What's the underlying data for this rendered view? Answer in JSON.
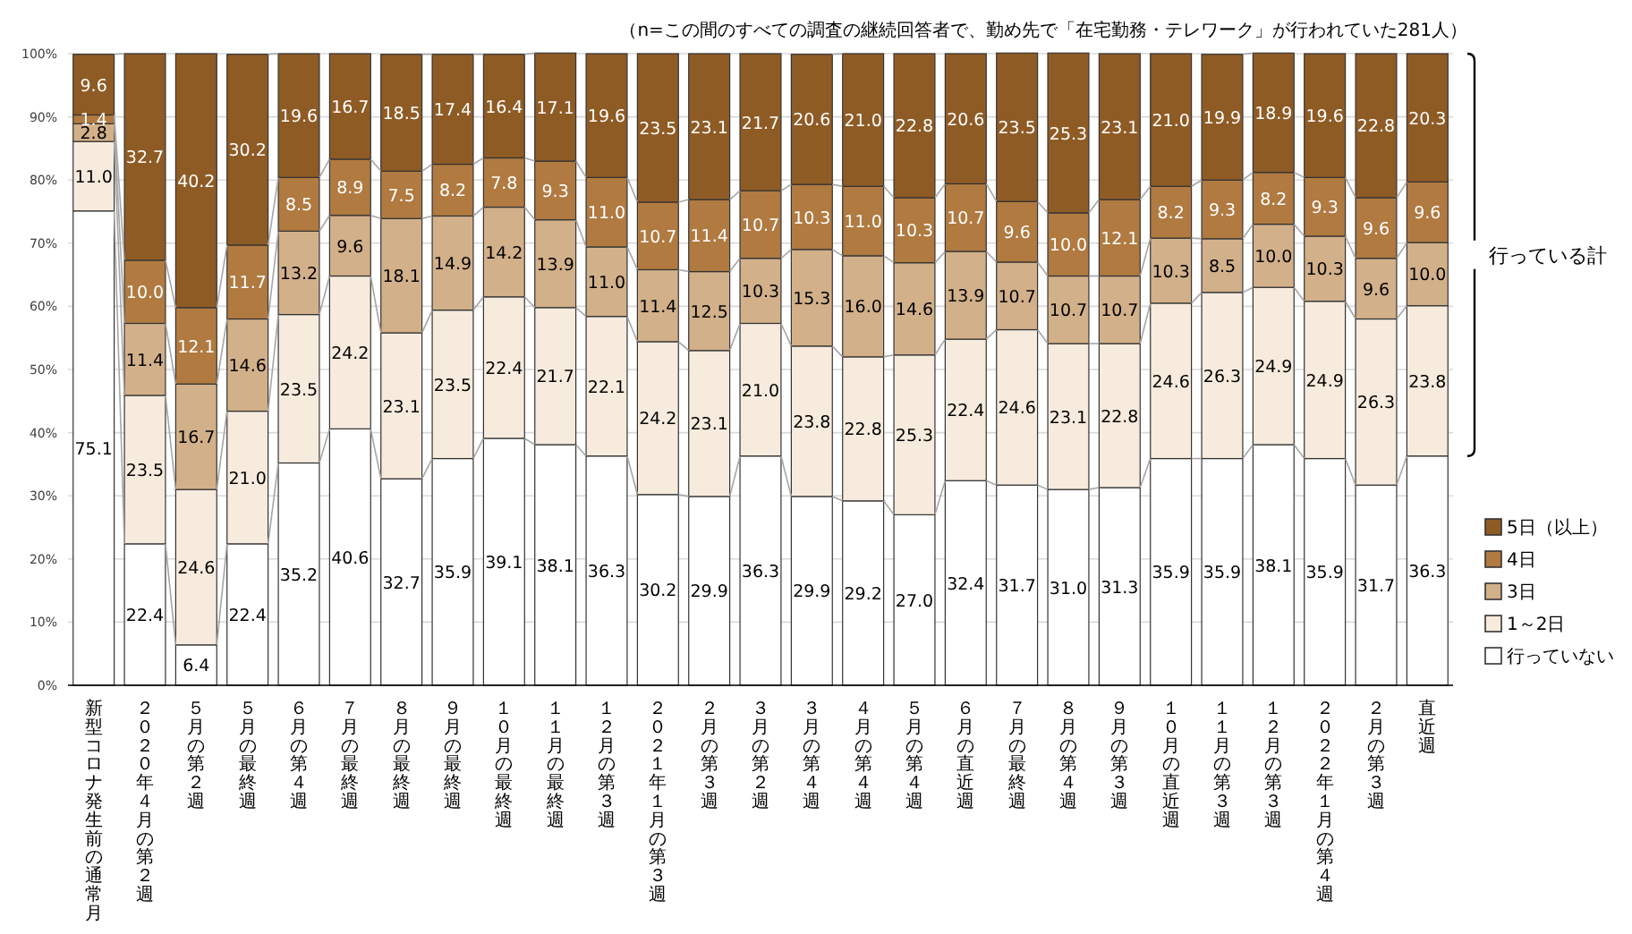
{
  "chart_data": {
    "type": "bar",
    "stacked": true,
    "annotations": [
      "（n=この間のすべての調査の継続回答者で、勤め先で「在宅勤務・テレワーク」が行われていた281人）",
      "行っている計"
    ],
    "categories": [
      "新型コロナ発生前の通常月",
      "２０２０年４月の第２週",
      "５月の第２週",
      "５月の最終週",
      "６月の第４週",
      "７月の最終週",
      "８月の最終週",
      "９月の最終週",
      "１０月の最終週",
      "１１月の最終週",
      "１２月の第３週",
      "２０２１年１月の第３週",
      "２月の第３週",
      "３月の第２週",
      "３月の第４週",
      "４月の第４週",
      "５月の第４週",
      "６月の直近週",
      "７月の最終週",
      "８月の第４週",
      "９月の第３週",
      "１０月の直近週",
      "１１月の第３週",
      "１２月の第３週",
      "２０２２年１月の第４週",
      "２月の第３週",
      "直近週"
    ],
    "series": [
      {
        "name": "行っていない",
        "color": "#ffffff",
        "values": [
          75.1,
          22.4,
          6.4,
          22.4,
          35.2,
          40.6,
          32.7,
          35.9,
          39.1,
          38.1,
          36.3,
          30.2,
          29.9,
          36.3,
          29.9,
          29.2,
          27.0,
          32.4,
          31.7,
          31.0,
          31.3,
          35.9,
          35.9,
          38.1,
          35.9,
          31.7,
          36.3
        ],
        "value_labels": [
          "75.1",
          "22.4",
          "6.4",
          "22.4",
          "35.2",
          "40.6",
          "32.7",
          "35.9",
          "39.1",
          "38.1",
          "36.3",
          "30.2",
          "29.9",
          "36.3",
          "29.9",
          "29.2",
          "27.0",
          "32.4",
          "31.7",
          "31.0",
          "31.3",
          "35.9",
          "35.9",
          "38.1",
          "35.9",
          "31.7",
          "36.3"
        ]
      },
      {
        "name": "1～2日",
        "color": "#f6ebdd",
        "values": [
          11.0,
          23.5,
          24.6,
          21.0,
          23.5,
          24.2,
          23.1,
          23.5,
          22.4,
          21.7,
          22.1,
          24.2,
          23.1,
          21.0,
          23.8,
          22.8,
          25.3,
          22.4,
          24.6,
          23.1,
          22.8,
          24.6,
          26.3,
          24.9,
          24.9,
          26.3,
          23.8
        ],
        "value_labels": [
          "11.0",
          "23.5",
          "24.6",
          "21.0",
          "23.5",
          "24.2",
          "23.1",
          "23.5",
          "22.4",
          "21.7",
          "22.1",
          "24.2",
          "23.1",
          "21.0",
          "23.8",
          "22.8",
          "25.3",
          "22.4",
          "24.6",
          "23.1",
          "22.8",
          "24.6",
          "26.3",
          "24.9",
          "24.9",
          "26.3",
          "23.8"
        ]
      },
      {
        "name": "3日",
        "color": "#d2b08a",
        "values": [
          2.8,
          11.4,
          16.7,
          14.6,
          13.2,
          9.6,
          18.1,
          14.9,
          14.2,
          13.9,
          11.0,
          11.4,
          12.5,
          10.3,
          15.3,
          16.0,
          14.6,
          13.9,
          10.7,
          10.7,
          10.7,
          10.3,
          8.5,
          10.0,
          10.3,
          9.6,
          10.0
        ],
        "value_labels": [
          "2.8",
          "11.4",
          "16.7",
          "14.6",
          "13.2",
          "9.6",
          "18.1",
          "14.9",
          "14.2",
          "13.9",
          "11.0",
          "11.4",
          "12.5",
          "10.3",
          "15.3",
          "16.0",
          "14.6",
          "13.9",
          "10.7",
          "10.7",
          "10.7",
          "10.3",
          "8.5",
          "10.0",
          "10.3",
          "9.6",
          "10.0"
        ]
      },
      {
        "name": "4日",
        "color": "#b07a40",
        "values": [
          1.4,
          10.0,
          12.1,
          11.7,
          8.5,
          8.9,
          7.5,
          8.2,
          7.8,
          9.3,
          11.0,
          10.7,
          11.4,
          10.7,
          10.3,
          11.0,
          10.3,
          10.7,
          9.6,
          10.0,
          12.1,
          8.2,
          9.3,
          8.2,
          9.3,
          9.6,
          9.6
        ],
        "value_labels": [
          "1.4",
          "10.0",
          "12.1",
          "11.7",
          "8.5",
          "8.9",
          "7.5",
          "8.2",
          "7.8",
          "9.3",
          "11.0",
          "10.7",
          "11.4",
          "10.7",
          "10.3",
          "11.0",
          "10.3",
          "10.7",
          "9.6",
          "10.0",
          "12.1",
          "8.2",
          "9.3",
          "8.2",
          "9.3",
          "9.6",
          "9.6"
        ]
      },
      {
        "name": "5日（以上）",
        "color": "#8f5b25",
        "values": [
          9.6,
          32.7,
          40.2,
          30.2,
          19.6,
          16.7,
          18.5,
          17.4,
          16.4,
          17.1,
          19.6,
          23.5,
          23.1,
          21.7,
          20.6,
          21.0,
          22.8,
          20.6,
          23.5,
          25.3,
          23.1,
          21.0,
          19.9,
          18.9,
          19.6,
          22.8,
          20.3
        ],
        "value_labels": [
          "9.6",
          "32.7",
          "40.2",
          "30.2",
          "19.6",
          "16.7",
          "18.5",
          "17.4",
          "16.4",
          "17.1",
          "19.6",
          "23.5",
          "23.1",
          "21.7",
          "20.6",
          "21.0",
          "22.8",
          "20.6",
          "23.5",
          "25.3",
          "23.1",
          "21.0",
          "19.9",
          "18.9",
          "19.6",
          "22.8",
          "20.3"
        ]
      }
    ],
    "ylim": [
      0,
      100
    ],
    "yticks": [
      {
        "value": 0,
        "label": "0%"
      },
      {
        "value": 10,
        "label": "10%"
      },
      {
        "value": 20,
        "label": "20%"
      },
      {
        "value": 30,
        "label": "30%"
      },
      {
        "value": 40,
        "label": "40%"
      },
      {
        "value": 50,
        "label": "50%"
      },
      {
        "value": 60,
        "label": "60%"
      },
      {
        "value": 70,
        "label": "70%"
      },
      {
        "value": 80,
        "label": "80%"
      },
      {
        "value": 90,
        "label": "90%"
      },
      {
        "value": 100,
        "label": "100%"
      }
    ],
    "grid": "y",
    "legend": "right"
  }
}
